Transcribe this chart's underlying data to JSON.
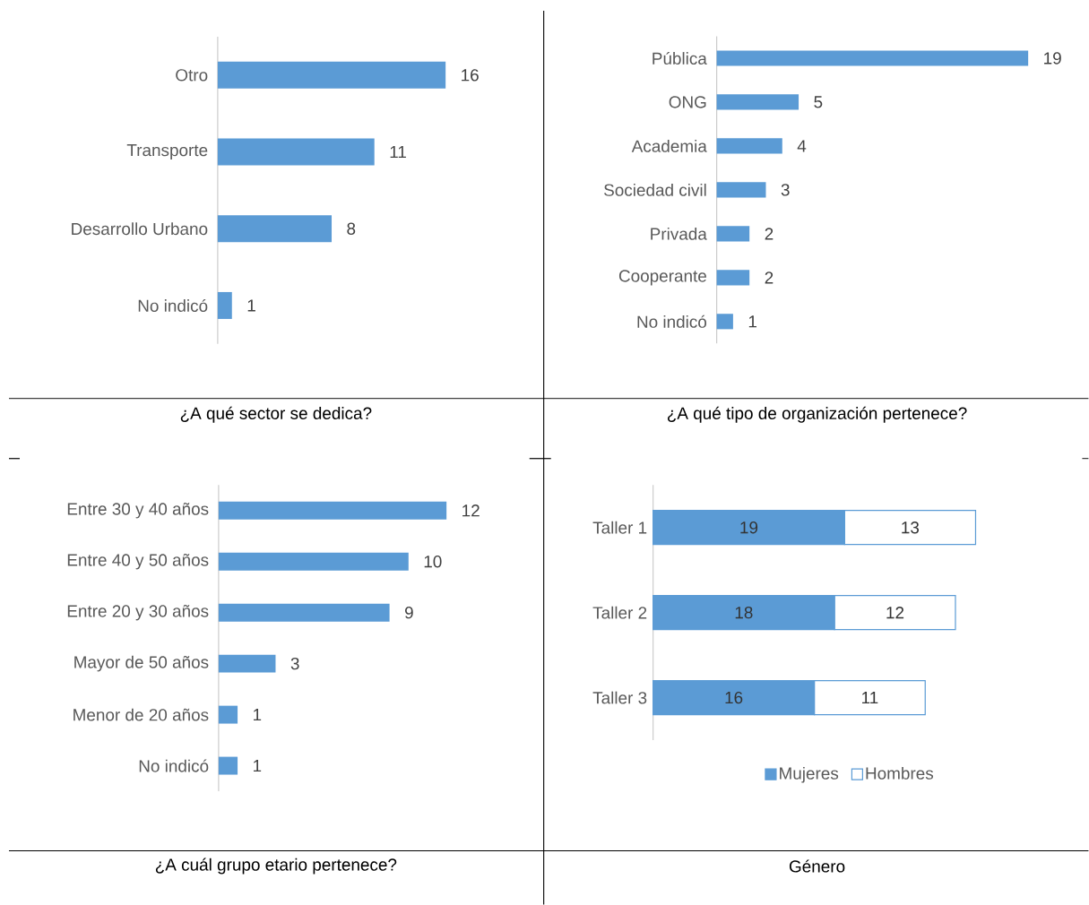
{
  "chart_data": [
    {
      "type": "bar",
      "orientation": "horizontal",
      "title": "¿A qué sector se dedica?",
      "categories": [
        "Otro",
        "Transporte",
        "Desarrollo Urbano",
        "No indicó"
      ],
      "values": [
        16,
        11,
        8,
        1
      ],
      "color": "#5b9bd5",
      "tick_labels": "y",
      "data_labels": true
    },
    {
      "type": "bar",
      "orientation": "horizontal",
      "title": "¿A qué tipo de organización pertenece?",
      "categories": [
        "Pública",
        "ONG",
        "Academia",
        "Sociedad civil",
        "Privada",
        "Cooperante",
        "No indicó"
      ],
      "values": [
        19,
        5,
        4,
        3,
        2,
        2,
        1
      ],
      "color": "#5b9bd5",
      "tick_labels": "y",
      "data_labels": true
    },
    {
      "type": "bar",
      "orientation": "horizontal",
      "title": "¿A cuál grupo etario pertenece?",
      "categories": [
        "Entre 30 y 40 años",
        "Entre 40 y 50 años",
        "Entre 20 y 30 años",
        "Mayor de 50 años",
        "Menor de 20 años",
        "No indicó"
      ],
      "values": [
        12,
        10,
        9,
        3,
        1,
        1
      ],
      "color": "#5b9bd5",
      "tick_labels": "y",
      "data_labels": true
    },
    {
      "type": "bar",
      "orientation": "horizontal",
      "stacked": true,
      "title": "Género",
      "categories": [
        "Taller 1",
        "Taller 2",
        "Taller 3"
      ],
      "series": [
        {
          "name": "Mujeres",
          "color": "#5b9bd5",
          "values": [
            19,
            18,
            16
          ]
        },
        {
          "name": "Hombres",
          "color": "#ffffff",
          "values": [
            13,
            12,
            11
          ]
        }
      ],
      "tick_labels": "y",
      "data_labels": true,
      "legend": "bottom"
    }
  ]
}
